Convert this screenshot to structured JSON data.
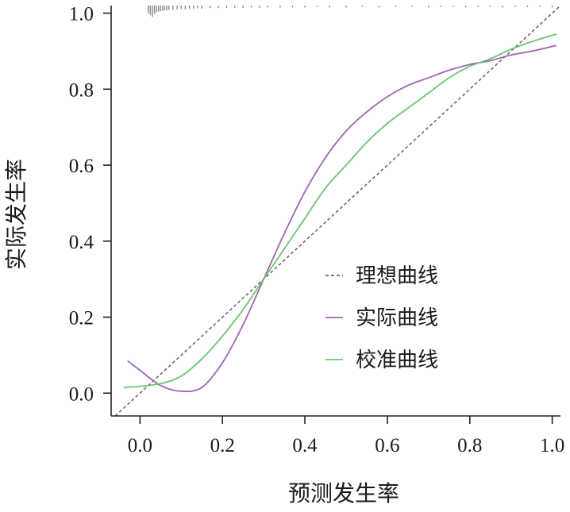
{
  "chart_data": {
    "type": "line",
    "xlabel": "预测发生率",
    "ylabel": "实际发生率",
    "xlim": [
      -0.07,
      1.02
    ],
    "ylim": [
      -0.06,
      1.02
    ],
    "x_ticks": [
      "0.0",
      "0.2",
      "0.4",
      "0.6",
      "0.8",
      "1.0"
    ],
    "y_ticks": [
      "0.0",
      "0.2",
      "0.4",
      "0.6",
      "0.8",
      "1.0"
    ],
    "grid": false,
    "legend_position": "center-right",
    "series": [
      {
        "name": "理想曲线",
        "style": "dashed",
        "color": "#6b6b6b",
        "x": [
          -0.07,
          1.02
        ],
        "y": [
          -0.07,
          1.02
        ]
      },
      {
        "name": "实际曲线",
        "style": "solid",
        "color": "#a064b4",
        "x": [
          -0.03,
          0.0,
          0.05,
          0.1,
          0.15,
          0.2,
          0.25,
          0.3,
          0.35,
          0.4,
          0.45,
          0.5,
          0.55,
          0.6,
          0.65,
          0.7,
          0.75,
          0.8,
          0.85,
          0.9,
          0.95,
          1.01
        ],
        "y": [
          0.085,
          0.06,
          0.02,
          0.005,
          0.015,
          0.08,
          0.18,
          0.3,
          0.42,
          0.53,
          0.62,
          0.69,
          0.74,
          0.78,
          0.81,
          0.83,
          0.85,
          0.865,
          0.875,
          0.89,
          0.9,
          0.915
        ]
      },
      {
        "name": "校准曲线",
        "style": "solid",
        "color": "#6cc470",
        "x": [
          -0.04,
          0.0,
          0.05,
          0.1,
          0.15,
          0.2,
          0.25,
          0.3,
          0.35,
          0.4,
          0.45,
          0.5,
          0.55,
          0.6,
          0.65,
          0.7,
          0.75,
          0.8,
          0.85,
          0.9,
          0.95,
          1.01
        ],
        "y": [
          0.015,
          0.018,
          0.025,
          0.045,
          0.09,
          0.15,
          0.22,
          0.3,
          0.38,
          0.46,
          0.54,
          0.6,
          0.66,
          0.71,
          0.75,
          0.79,
          0.83,
          0.86,
          0.88,
          0.905,
          0.925,
          0.945
        ]
      }
    ],
    "rug": {
      "color": "#8c8c8c",
      "x": [
        0.02,
        0.025,
        0.03,
        0.035,
        0.04,
        0.045,
        0.05,
        0.055,
        0.06,
        0.065,
        0.07,
        0.08,
        0.09,
        0.1,
        0.11,
        0.12,
        0.13,
        0.14,
        0.15,
        0.17,
        0.19,
        0.21,
        0.23,
        0.25,
        0.27,
        0.29,
        0.31,
        0.34,
        0.37,
        0.4,
        0.43,
        0.46,
        0.5,
        0.54,
        0.58,
        0.62,
        0.66,
        0.7,
        0.73,
        0.76,
        0.79,
        0.82,
        0.85,
        0.88,
        0.91,
        0.94,
        0.97,
        1.0
      ],
      "len": [
        0.02,
        0.025,
        0.03,
        0.022,
        0.018,
        0.016,
        0.015,
        0.014,
        0.012,
        0.013,
        0.011,
        0.012,
        0.01,
        0.009,
        0.01,
        0.008,
        0.008,
        0.007,
        0.008,
        0.007,
        0.007,
        0.006,
        0.006,
        0.006,
        0.005,
        0.006,
        0.005,
        0.005,
        0.005,
        0.005,
        0.004,
        0.005,
        0.005,
        0.004,
        0.005,
        0.004,
        0.004,
        0.005,
        0.004,
        0.004,
        0.005,
        0.004,
        0.004,
        0.005,
        0.004,
        0.004,
        0.004,
        0.005
      ]
    }
  }
}
